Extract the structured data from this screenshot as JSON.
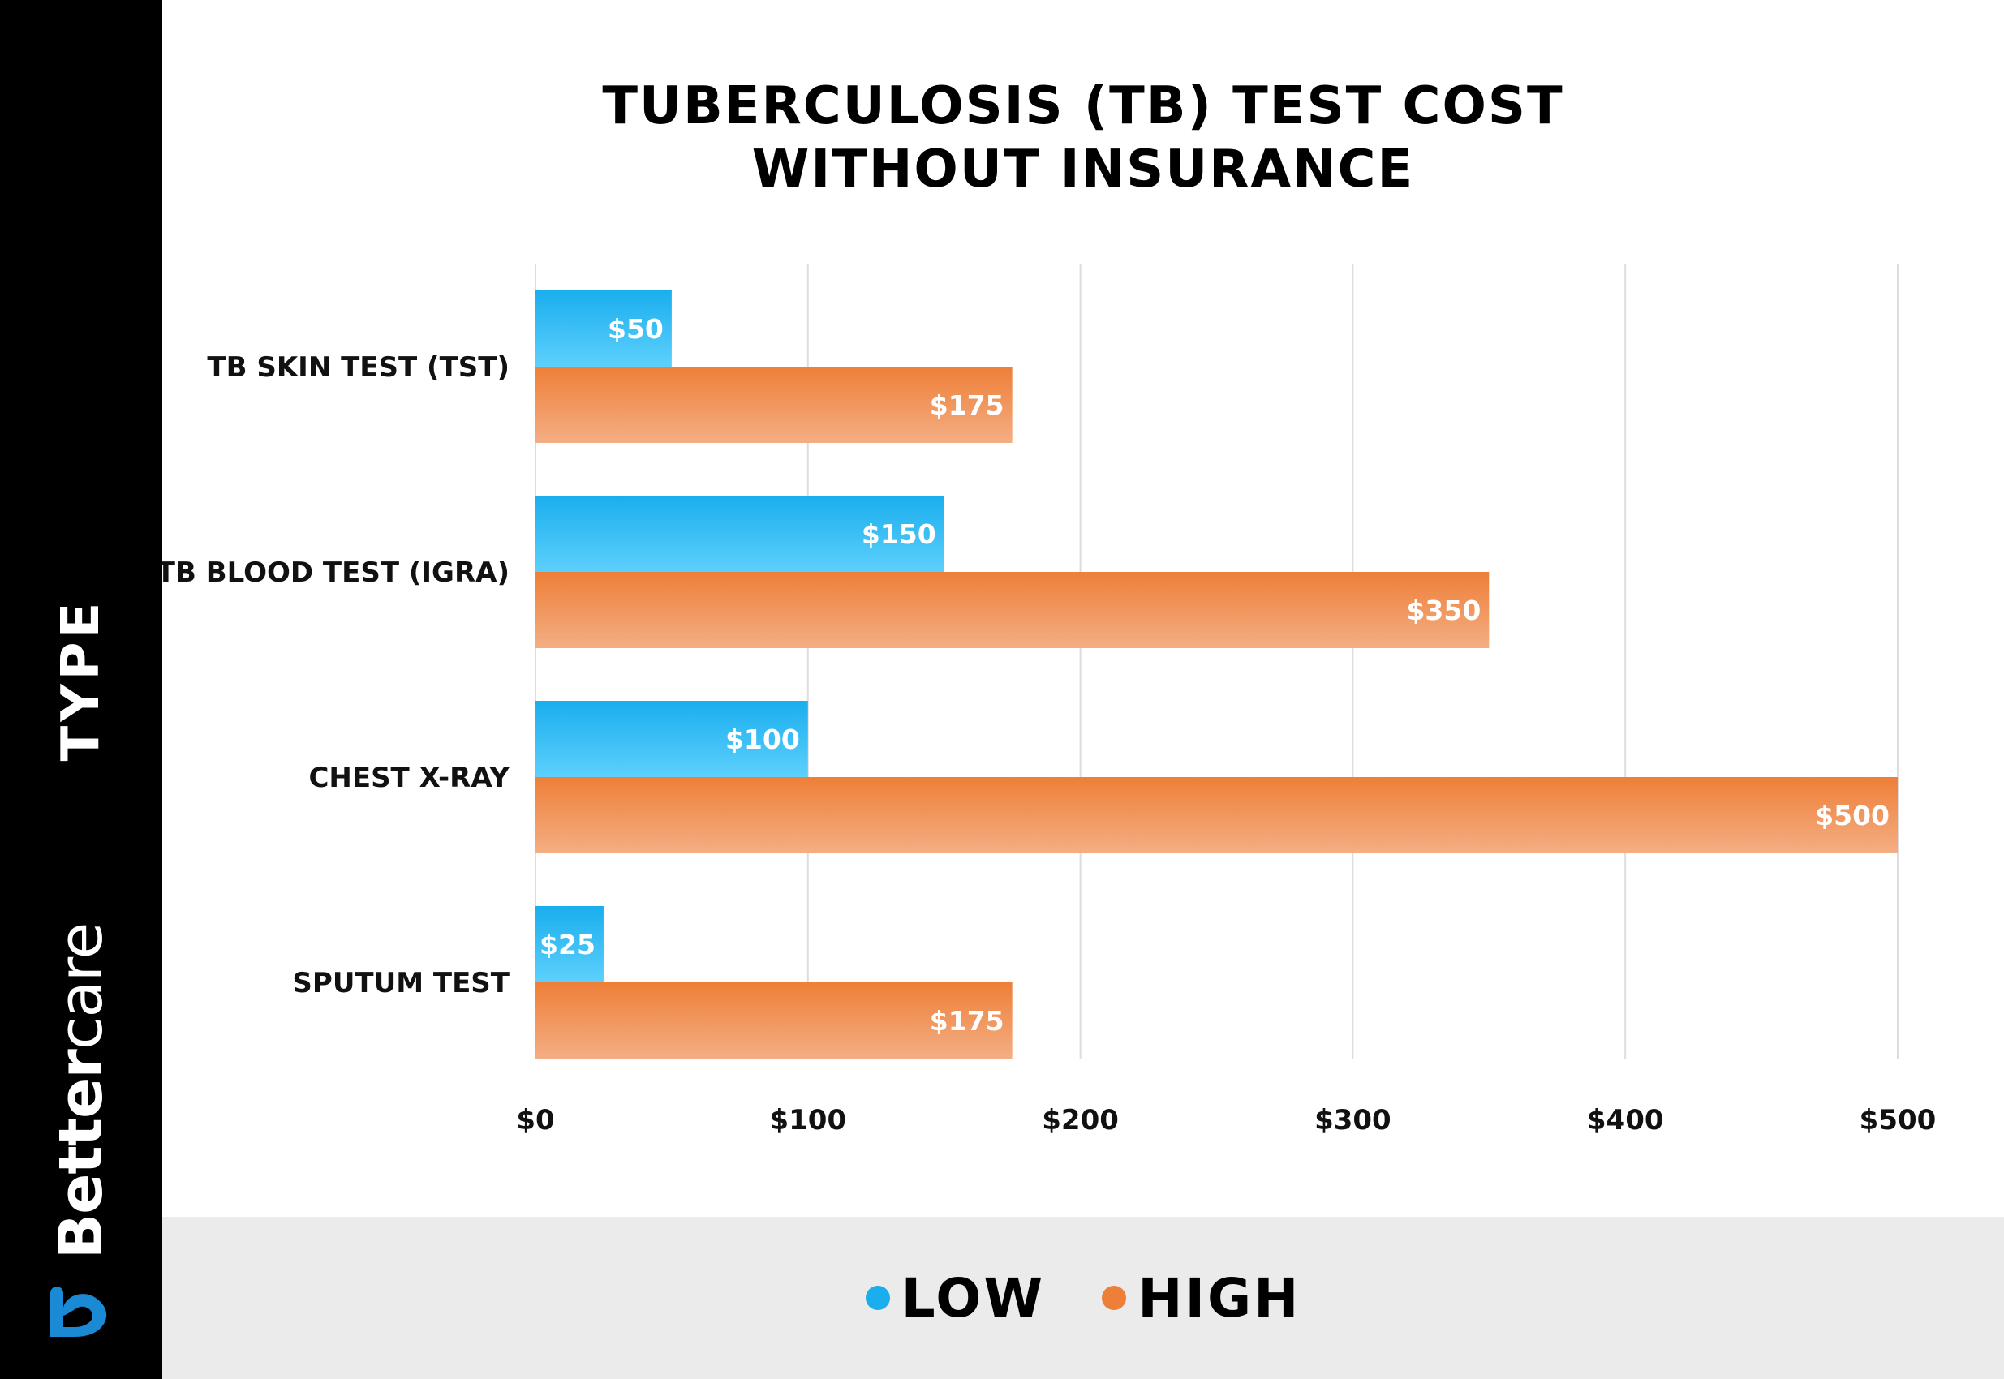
{
  "sidebar": {
    "axis_title": "TYPE",
    "brand_name_bold": "Better",
    "brand_name_light": "care",
    "logo_icon": "heart-b-logo-icon",
    "logo_color": "#1a8ad4"
  },
  "colors": {
    "low": "#1aaeee",
    "low_light": "#5dd0fc",
    "high": "#ee7f38",
    "high_light": "#f4ae84",
    "grid": "#dddddd"
  },
  "chart_data": {
    "type": "bar",
    "orientation": "horizontal",
    "title_lines": [
      "TUBERCULOSIS (TB) TEST COST",
      "WITHOUT INSURANCE"
    ],
    "ylabel": "TYPE",
    "xlabel": "",
    "categories": [
      "TB SKIN TEST (TST)",
      "TB BLOOD TEST (IGRA)",
      "CHEST X-RAY",
      "SPUTUM TEST"
    ],
    "series": [
      {
        "name": "LOW",
        "values": [
          50,
          150,
          100,
          25
        ],
        "labels": [
          "$50",
          "$150",
          "$100",
          "$25"
        ]
      },
      {
        "name": "HIGH",
        "values": [
          175,
          350,
          500,
          175
        ],
        "labels": [
          "$175",
          "$350",
          "$500",
          "$175"
        ]
      }
    ],
    "xlim": [
      0,
      500
    ],
    "xticks": [
      0,
      100,
      200,
      300,
      400,
      500
    ],
    "xtick_labels": [
      "$0",
      "$100",
      "$200",
      "$300",
      "$400",
      "$500"
    ],
    "grid": true,
    "legend_position": "bottom-center"
  }
}
